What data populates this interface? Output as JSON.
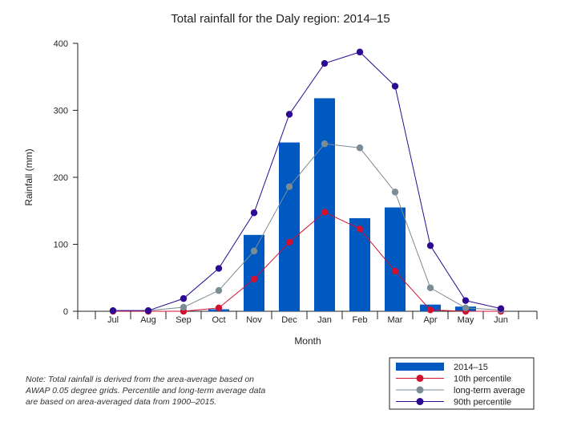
{
  "chart_data": {
    "type": "bar",
    "title": "Total rainfall for the Daly region: 2014–15",
    "xlabel": "Month",
    "ylabel": "Rainfall (mm)",
    "ylim": [
      0,
      400
    ],
    "yticks": [
      0,
      100,
      200,
      300,
      400
    ],
    "categories": [
      "Jul",
      "Aug",
      "Sep",
      "Oct",
      "Nov",
      "Dec",
      "Jan",
      "Feb",
      "Mar",
      "Apr",
      "May",
      "Jun"
    ],
    "grid": false,
    "legend_position": "bottom-right",
    "series": [
      {
        "name": "2014–15",
        "kind": "bar",
        "color": "#0059c1",
        "values": [
          0,
          0,
          0,
          3,
          114,
          252,
          318,
          139,
          155,
          10,
          7,
          0
        ]
      },
      {
        "name": "10th percentile",
        "kind": "line",
        "color": "#d21131",
        "values": [
          0,
          0,
          0,
          5,
          48,
          103,
          148,
          123,
          60,
          2,
          0,
          0
        ]
      },
      {
        "name": "long-term average",
        "kind": "line",
        "color": "#7a8c94",
        "values": [
          1,
          1,
          6,
          31,
          90,
          186,
          250,
          244,
          178,
          35,
          5,
          2
        ]
      },
      {
        "name": "90th percentile",
        "kind": "line",
        "color": "#2d0a91",
        "values": [
          1,
          1,
          19,
          64,
          147,
          294,
          370,
          387,
          336,
          98,
          16,
          4
        ]
      }
    ]
  },
  "note_lines": [
    "Note: Total rainfall is derived from the area-average based on",
    "AWAP 0.05 degree grids. Percentile and long-term average data",
    "are based on area-averaged data from 1900–2015."
  ]
}
